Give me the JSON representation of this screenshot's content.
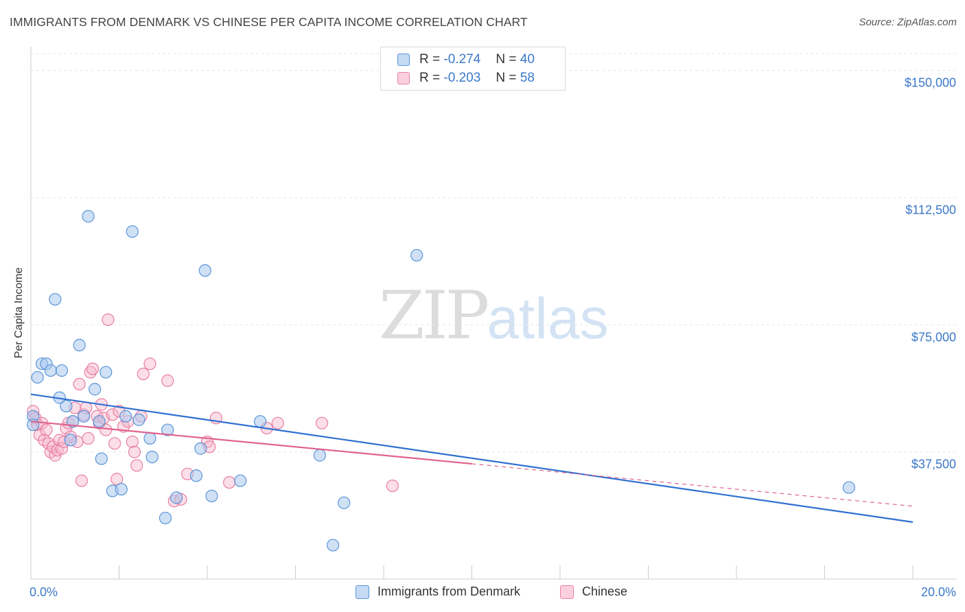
{
  "header": {
    "title": "IMMIGRANTS FROM DENMARK VS CHINESE PER CAPITA INCOME CORRELATION CHART",
    "source": "Source: ZipAtlas.com"
  },
  "watermark": {
    "zip": "ZIP",
    "atlas": "atlas"
  },
  "legend": {
    "series1": {
      "r_label": "R =",
      "r_value": "-0.274",
      "n_label": "N =",
      "n_value": "40"
    },
    "series2": {
      "r_label": "R =",
      "r_value": "-0.203",
      "n_label": "N =",
      "n_value": "58"
    }
  },
  "colors": {
    "blue_fill": "#a9c9ee",
    "blue_stroke": "#5a94d8",
    "blue_line": "#2f6fd0",
    "pink_fill": "#f6b6cb",
    "pink_stroke": "#e87ea1",
    "pink_line": "#e0628e",
    "grid": "#e6e6e6",
    "axis_text": "#3b78c9"
  },
  "chart_data": {
    "type": "scatter",
    "title": "IMMIGRANTS FROM DENMARK VS CHINESE PER CAPITA INCOME CORRELATION CHART",
    "xlabel": "",
    "ylabel": "Per Capita Income",
    "xlim": [
      0,
      20
    ],
    "ylim": [
      0,
      155000
    ],
    "x_tick_labels": [
      "0.0%",
      "20.0%"
    ],
    "y_ticks": [
      37500,
      75000,
      112500,
      150000
    ],
    "y_tick_labels": [
      "$37,500",
      "$75,000",
      "$112,500",
      "$150,000"
    ],
    "grid": true,
    "legend_position": "bottom",
    "series": [
      {
        "name": "Immigrants from Denmark",
        "r": -0.274,
        "n": 40,
        "trend": {
          "x": [
            0,
            20
          ],
          "y": [
            54500,
            16800
          ],
          "dashed_from": null
        },
        "points": [
          [
            0.05,
            48000
          ],
          [
            0.05,
            45500
          ],
          [
            0.15,
            59500
          ],
          [
            0.25,
            63500
          ],
          [
            0.35,
            63500
          ],
          [
            0.45,
            61500
          ],
          [
            0.55,
            82500
          ],
          [
            0.65,
            53500
          ],
          [
            0.7,
            61500
          ],
          [
            0.8,
            51000
          ],
          [
            0.9,
            41000
          ],
          [
            0.95,
            46500
          ],
          [
            1.1,
            69000
          ],
          [
            1.2,
            48000
          ],
          [
            1.3,
            107000
          ],
          [
            1.45,
            56000
          ],
          [
            1.55,
            46500
          ],
          [
            1.6,
            35500
          ],
          [
            1.7,
            61000
          ],
          [
            1.85,
            26000
          ],
          [
            2.05,
            26500
          ],
          [
            2.15,
            48000
          ],
          [
            2.3,
            102500
          ],
          [
            2.45,
            47000
          ],
          [
            2.7,
            41500
          ],
          [
            2.75,
            36000
          ],
          [
            3.05,
            18000
          ],
          [
            3.1,
            44000
          ],
          [
            3.3,
            24000
          ],
          [
            3.75,
            30500
          ],
          [
            3.85,
            38500
          ],
          [
            3.95,
            91000
          ],
          [
            4.1,
            24500
          ],
          [
            4.75,
            29000
          ],
          [
            5.2,
            46500
          ],
          [
            6.55,
            36500
          ],
          [
            6.85,
            10000
          ],
          [
            7.1,
            22500
          ],
          [
            8.75,
            95500
          ],
          [
            18.55,
            27000
          ]
        ]
      },
      {
        "name": "Chinese",
        "r": -0.203,
        "n": 58,
        "trend": {
          "x": [
            0,
            20
          ],
          "y": [
            46500,
            21500
          ],
          "dashed_from": 10
        },
        "points": [
          [
            0.05,
            49500
          ],
          [
            0.1,
            47500
          ],
          [
            0.15,
            45500
          ],
          [
            0.2,
            42500
          ],
          [
            0.25,
            46000
          ],
          [
            0.3,
            41000
          ],
          [
            0.35,
            44000
          ],
          [
            0.4,
            40000
          ],
          [
            0.45,
            37500
          ],
          [
            0.5,
            39000
          ],
          [
            0.55,
            36500
          ],
          [
            0.6,
            38000
          ],
          [
            0.65,
            41000
          ],
          [
            0.7,
            38500
          ],
          [
            0.75,
            40500
          ],
          [
            0.8,
            44500
          ],
          [
            0.85,
            46000
          ],
          [
            0.9,
            42000
          ],
          [
            0.95,
            46500
          ],
          [
            1.0,
            50500
          ],
          [
            1.05,
            40500
          ],
          [
            1.1,
            57500
          ],
          [
            1.15,
            29000
          ],
          [
            1.2,
            48500
          ],
          [
            1.25,
            50500
          ],
          [
            1.3,
            41500
          ],
          [
            1.35,
            61000
          ],
          [
            1.4,
            62000
          ],
          [
            1.5,
            48000
          ],
          [
            1.55,
            46000
          ],
          [
            1.6,
            51500
          ],
          [
            1.65,
            47500
          ],
          [
            1.7,
            44000
          ],
          [
            1.75,
            76500
          ],
          [
            1.85,
            48500
          ],
          [
            1.9,
            40000
          ],
          [
            1.95,
            29500
          ],
          [
            2.0,
            49500
          ],
          [
            2.1,
            45000
          ],
          [
            2.2,
            46500
          ],
          [
            2.3,
            40500
          ],
          [
            2.35,
            37500
          ],
          [
            2.4,
            33500
          ],
          [
            2.5,
            48000
          ],
          [
            2.55,
            60500
          ],
          [
            2.7,
            63500
          ],
          [
            3.1,
            58500
          ],
          [
            3.25,
            23000
          ],
          [
            3.4,
            23500
          ],
          [
            3.55,
            31000
          ],
          [
            4.0,
            40500
          ],
          [
            4.05,
            39000
          ],
          [
            4.2,
            47500
          ],
          [
            4.5,
            28500
          ],
          [
            5.35,
            44500
          ],
          [
            5.6,
            46000
          ],
          [
            6.6,
            46000
          ],
          [
            8.2,
            27500
          ]
        ]
      }
    ]
  },
  "bottom_legend": {
    "items": [
      {
        "label": "Immigrants from Denmark"
      },
      {
        "label": "Chinese"
      }
    ]
  }
}
